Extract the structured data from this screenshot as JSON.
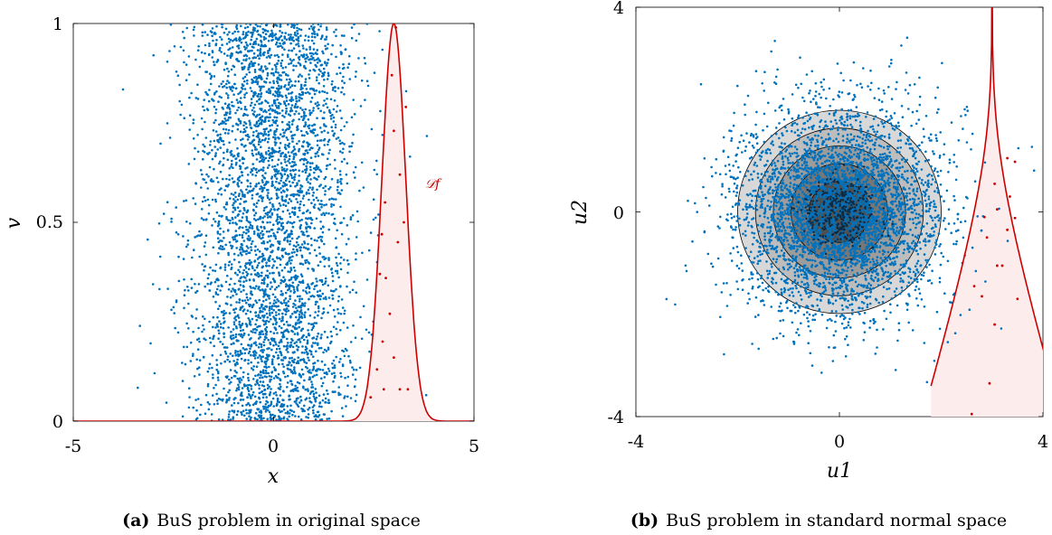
{
  "chart_data": [
    {
      "type": "scatter",
      "panel": "a",
      "caption_label": "(a)",
      "caption_text": "BuS problem in original space",
      "xlabel": "x",
      "ylabel": "v",
      "xlim": [
        -5,
        5
      ],
      "ylim": [
        0,
        1
      ],
      "x_ticks": [
        "-5",
        "0",
        "5"
      ],
      "y_ticks": [
        "0",
        "0.5",
        "1"
      ],
      "annotation": "𝒟f",
      "series": [
        {
          "role": "samples",
          "distribution": "x ~ Normal(0,1), v ~ Uniform(0,1)",
          "count": 4000,
          "color": "#0072bd",
          "points_sample": [
            [
              -3.3,
              0.04
            ],
            [
              -2.6,
              0.33
            ],
            [
              2.6,
              0.97
            ],
            [
              3.7,
              0.89
            ],
            [
              -1.1,
              0.5
            ]
          ]
        },
        {
          "role": "accepted-samples",
          "color": "#cc0000",
          "points": [
            [
              3.05,
              0.99
            ],
            [
              2.95,
              0.87
            ],
            [
              3.3,
              0.79
            ],
            [
              3.0,
              0.73
            ],
            [
              3.15,
              0.62
            ],
            [
              2.78,
              0.55
            ],
            [
              3.25,
              0.5
            ],
            [
              2.7,
              0.47
            ],
            [
              3.1,
              0.45
            ],
            [
              2.65,
              0.37
            ],
            [
              2.8,
              0.36
            ],
            [
              2.9,
              0.27
            ],
            [
              2.72,
              0.2
            ],
            [
              3.0,
              0.16
            ],
            [
              2.58,
              0.13
            ],
            [
              2.75,
              0.08
            ],
            [
              3.15,
              0.08
            ],
            [
              3.35,
              0.08
            ],
            [
              2.42,
              0.06
            ]
          ]
        },
        {
          "role": "failure-domain-boundary",
          "label": "𝒟f",
          "curve": "v = exp(-(x - 3)^2 / (2*0.3^2))",
          "color": "#cc0000",
          "fill": "#fcecec"
        }
      ]
    },
    {
      "type": "scatter",
      "panel": "b",
      "caption_label": "(b)",
      "caption_text": "BuS problem in standard normal space",
      "xlabel": "u1",
      "ylabel": "u2",
      "xlim": [
        -4,
        4
      ],
      "ylim": [
        -4,
        4
      ],
      "x_ticks": [
        "-4",
        "0",
        "4"
      ],
      "y_ticks": [
        "-4",
        "0",
        "4"
      ],
      "series": [
        {
          "role": "samples",
          "distribution": "u1, u2 ~ Normal(0,1)",
          "count": 4000,
          "color": "#0072bd"
        },
        {
          "role": "contours",
          "type": "filled-circles",
          "radii": [
            2.0,
            1.65,
            1.3,
            0.95,
            0.6
          ],
          "colors": [
            "#d8d8d8",
            "#bdbdbd",
            "#9c9c9c",
            "#777777",
            "#4f4f4f"
          ]
        },
        {
          "role": "accepted-samples",
          "color": "#cc0000",
          "points": [
            [
              3.3,
              1.05
            ],
            [
              3.45,
              0.98
            ],
            [
              3.05,
              0.55
            ],
            [
              3.35,
              0.3
            ],
            [
              3.1,
              0.05
            ],
            [
              2.85,
              -0.1
            ],
            [
              3.45,
              -0.12
            ],
            [
              3.3,
              -0.35
            ],
            [
              2.9,
              -0.5
            ],
            [
              3.1,
              -1.05
            ],
            [
              3.2,
              -1.05
            ],
            [
              2.65,
              -1.45
            ],
            [
              2.8,
              -1.65
            ],
            [
              3.5,
              -1.7
            ],
            [
              3.05,
              -2.2
            ],
            [
              2.95,
              -3.35
            ],
            [
              2.6,
              -3.95
            ]
          ]
        },
        {
          "role": "failure-domain-boundary",
          "curve": "u2 = Phi^-1(exp(-(u1 - 3)^2 / (2*0.3^2)))",
          "color": "#cc0000",
          "fill": "#fcecec"
        }
      ]
    }
  ]
}
